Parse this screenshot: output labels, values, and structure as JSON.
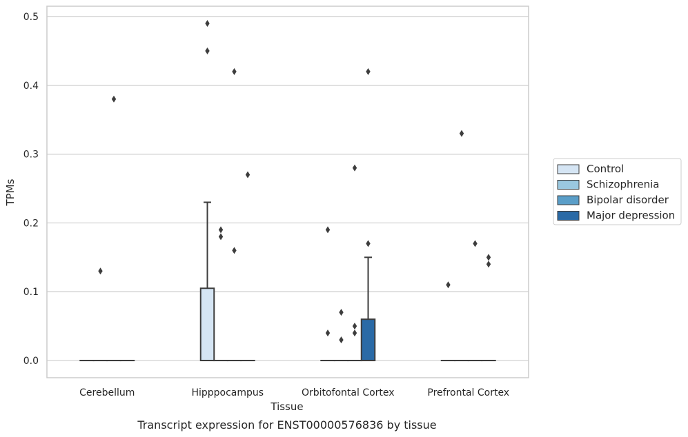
{
  "chart_data": {
    "type": "box",
    "xlabel": "Tissue",
    "ylabel": "TPMs",
    "caption": "Transcript expression for ENST00000576836 by tissue",
    "ylim": [
      -0.025,
      0.515
    ],
    "yticks": [
      "0.0",
      "0.1",
      "0.2",
      "0.3",
      "0.4",
      "0.5"
    ],
    "grid": "horizontal",
    "legend_position": "right",
    "categories": [
      "Cerebellum",
      "Hipppocampus",
      "Orbitofontal Cortex",
      "Prefrontal Cortex"
    ],
    "series": [
      {
        "name": "Control",
        "color": "#d5e5f4"
      },
      {
        "name": "Schizophrenia",
        "color": "#9ac8e0"
      },
      {
        "name": "Bipolar disorder",
        "color": "#5a9ec8"
      },
      {
        "name": "Major depression",
        "color": "#2a6aa6"
      }
    ],
    "boxes": [
      {
        "category": "Cerebellum",
        "series": "Control",
        "q1": 0,
        "median": 0,
        "q3": 0,
        "whisker_low": 0,
        "whisker_high": 0,
        "outliers": []
      },
      {
        "category": "Cerebellum",
        "series": "Schizophrenia",
        "q1": 0,
        "median": 0,
        "q3": 0,
        "whisker_low": 0,
        "whisker_high": 0,
        "outliers": [
          0.13
        ]
      },
      {
        "category": "Cerebellum",
        "series": "Bipolar disorder",
        "q1": 0,
        "median": 0,
        "q3": 0,
        "whisker_low": 0,
        "whisker_high": 0,
        "outliers": [
          0.38
        ]
      },
      {
        "category": "Cerebellum",
        "series": "Major depression",
        "q1": 0,
        "median": 0,
        "q3": 0,
        "whisker_low": 0,
        "whisker_high": 0,
        "outliers": []
      },
      {
        "category": "Hipppocampus",
        "series": "Control",
        "q1": 0,
        "median": 0,
        "q3": 0.105,
        "whisker_low": 0,
        "whisker_high": 0.23,
        "outliers": [
          0.45,
          0.49
        ]
      },
      {
        "category": "Hipppocampus",
        "series": "Schizophrenia",
        "q1": 0,
        "median": 0,
        "q3": 0,
        "whisker_low": 0,
        "whisker_high": 0,
        "outliers": [
          0.18,
          0.19
        ]
      },
      {
        "category": "Hipppocampus",
        "series": "Bipolar disorder",
        "q1": 0,
        "median": 0,
        "q3": 0,
        "whisker_low": 0,
        "whisker_high": 0,
        "outliers": [
          0.16,
          0.42
        ]
      },
      {
        "category": "Hipppocampus",
        "series": "Major depression",
        "q1": 0,
        "median": 0,
        "q3": 0,
        "whisker_low": 0,
        "whisker_high": 0,
        "outliers": [
          0.27
        ]
      },
      {
        "category": "Orbitofontal Cortex",
        "series": "Control",
        "q1": 0,
        "median": 0,
        "q3": 0,
        "whisker_low": 0,
        "whisker_high": 0,
        "outliers": [
          0.04,
          0.19
        ]
      },
      {
        "category": "Orbitofontal Cortex",
        "series": "Schizophrenia",
        "q1": 0,
        "median": 0,
        "q3": 0,
        "whisker_low": 0,
        "whisker_high": 0,
        "outliers": [
          0.03,
          0.07
        ]
      },
      {
        "category": "Orbitofontal Cortex",
        "series": "Bipolar disorder",
        "q1": 0,
        "median": 0,
        "q3": 0,
        "whisker_low": 0,
        "whisker_high": 0,
        "outliers": [
          0.04,
          0.05,
          0.28
        ]
      },
      {
        "category": "Orbitofontal Cortex",
        "series": "Major depression",
        "q1": 0,
        "median": 0,
        "q3": 0.06,
        "whisker_low": 0,
        "whisker_high": 0.15,
        "outliers": [
          0.17,
          0.42
        ]
      },
      {
        "category": "Prefrontal Cortex",
        "series": "Control",
        "q1": 0,
        "median": 0,
        "q3": 0,
        "whisker_low": 0,
        "whisker_high": 0,
        "outliers": [
          0.11
        ]
      },
      {
        "category": "Prefrontal Cortex",
        "series": "Schizophrenia",
        "q1": 0,
        "median": 0,
        "q3": 0,
        "whisker_low": 0,
        "whisker_high": 0,
        "outliers": [
          0.33
        ]
      },
      {
        "category": "Prefrontal Cortex",
        "series": "Bipolar disorder",
        "q1": 0,
        "median": 0,
        "q3": 0,
        "whisker_low": 0,
        "whisker_high": 0,
        "outliers": [
          0.17
        ]
      },
      {
        "category": "Prefrontal Cortex",
        "series": "Major depression",
        "q1": 0,
        "median": 0,
        "q3": 0,
        "whisker_low": 0,
        "whisker_high": 0,
        "outliers": [
          0.14,
          0.15
        ]
      }
    ]
  }
}
